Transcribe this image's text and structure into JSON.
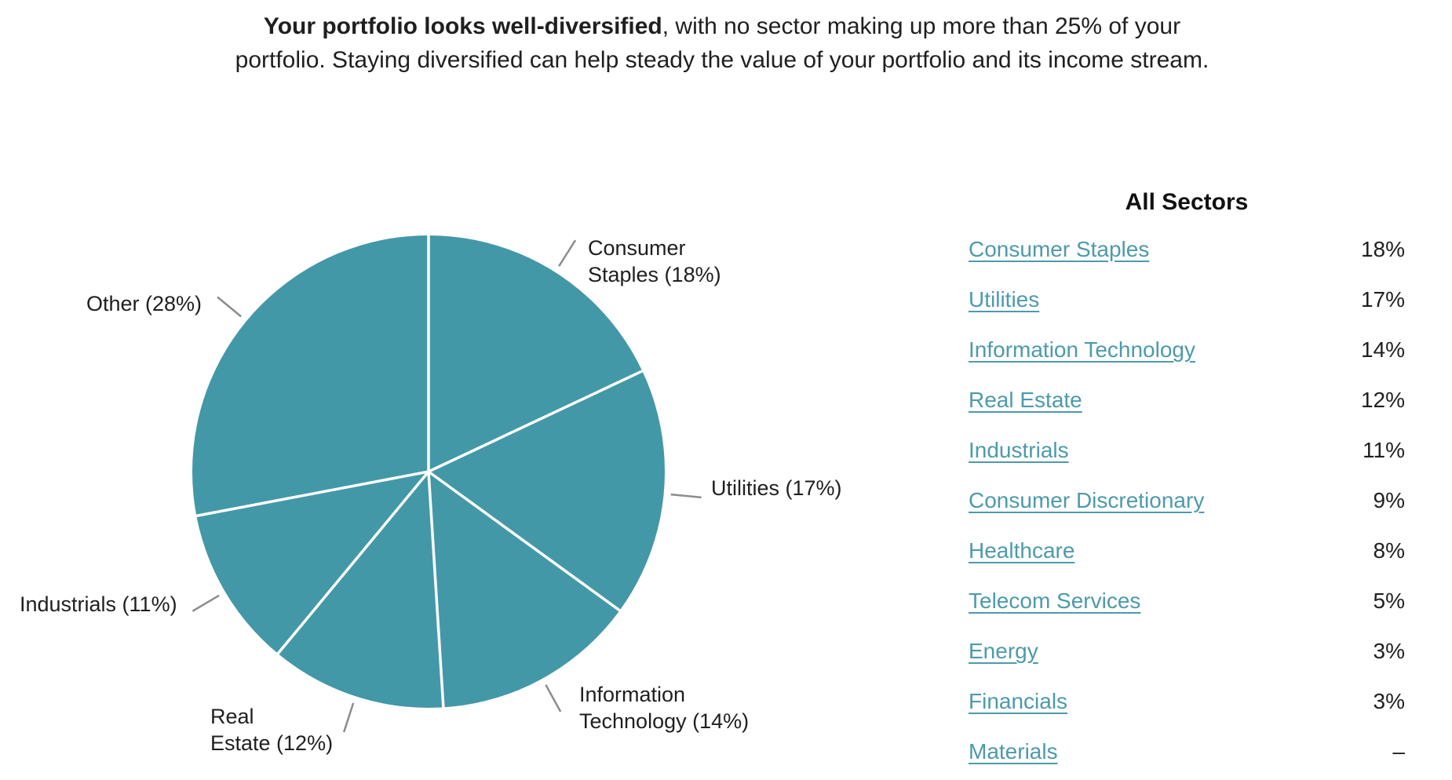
{
  "header": {
    "bold": "Your portfolio looks well-diversified",
    "rest": ", with no sector making up more than 25% of your portfolio. Staying diversified can help steady the value of your portfolio and its income stream."
  },
  "chart_data": {
    "type": "pie",
    "start": "top",
    "direction": "clockwise",
    "units": "percent",
    "slice_color": "#4398a8",
    "divider_color": "#ffffff",
    "tick_color": "#8c8c8c",
    "slices": [
      {
        "id": "consumer-staples",
        "label": "Consumer Staples",
        "value": 18,
        "callout": "Consumer\nStaples (18%)"
      },
      {
        "id": "utilities",
        "label": "Utilities",
        "value": 17,
        "callout": "Utilities (17%)"
      },
      {
        "id": "information-technology",
        "label": "Information Technology",
        "value": 14,
        "callout": "Information\nTechnology (14%)"
      },
      {
        "id": "real-estate",
        "label": "Real Estate",
        "value": 12,
        "callout": "Real\nEstate (12%)"
      },
      {
        "id": "industrials",
        "label": "Industrials",
        "value": 11,
        "callout": "Industrials (11%)"
      },
      {
        "id": "other",
        "label": "Other",
        "value": 28,
        "callout": "Other (28%)"
      }
    ]
  },
  "table": {
    "title": "All Sectors",
    "rows": [
      {
        "sector": "Consumer Staples",
        "percent": "18%"
      },
      {
        "sector": "Utilities",
        "percent": "17%"
      },
      {
        "sector": "Information Technology",
        "percent": "14%"
      },
      {
        "sector": "Real Estate",
        "percent": "12%"
      },
      {
        "sector": "Industrials",
        "percent": "11%"
      },
      {
        "sector": "Consumer Discretionary",
        "percent": "9%"
      },
      {
        "sector": "Healthcare",
        "percent": "8%"
      },
      {
        "sector": "Telecom Services",
        "percent": "5%"
      },
      {
        "sector": "Energy",
        "percent": "3%"
      },
      {
        "sector": "Financials",
        "percent": "3%"
      },
      {
        "sector": "Materials",
        "percent": "–"
      }
    ]
  },
  "colors": {
    "pie": "#4398a8",
    "link": "#4d9aab",
    "text": "#1f1f1f",
    "tick": "#8c8c8c"
  }
}
